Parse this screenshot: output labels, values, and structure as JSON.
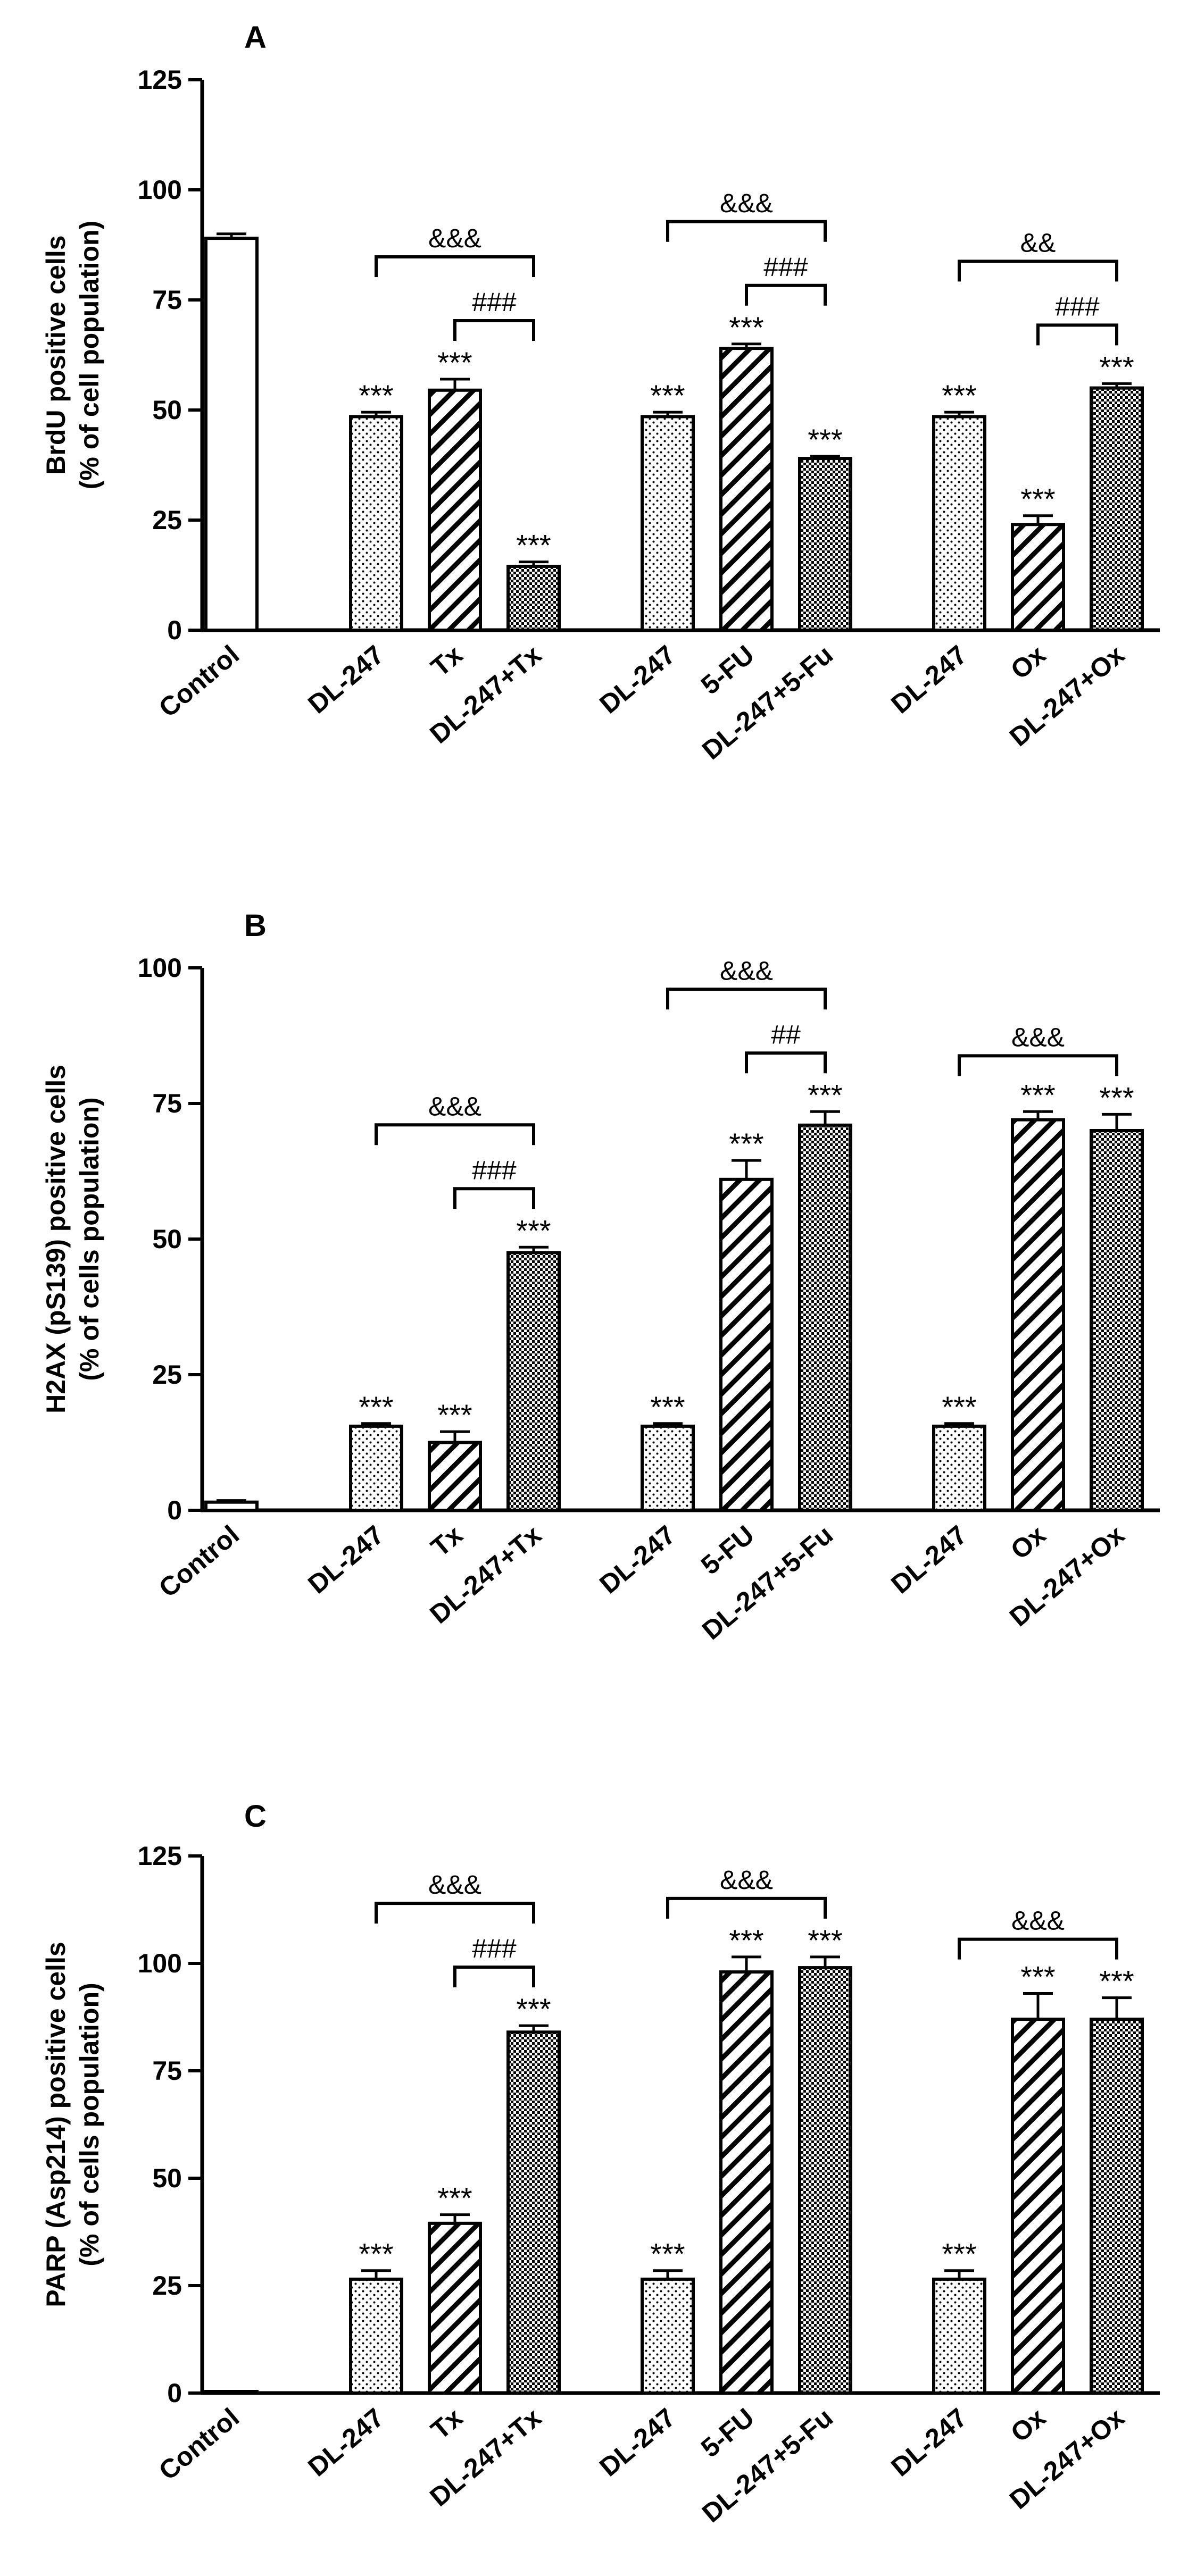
{
  "chart_data": [
    {
      "type": "bar",
      "title": "A",
      "ylabel": [
        "BrdU positive cells",
        "(% of cell population)"
      ],
      "ylim": [
        0,
        125
      ],
      "yticks": [
        0,
        25,
        50,
        75,
        100,
        125
      ],
      "categories": [
        "Control",
        "DL-247",
        "Tx",
        "DL-247+Tx",
        "DL-247",
        "5-FU",
        "DL-247+5-Fu",
        "DL-247",
        "Ox",
        "DL-247+Ox"
      ],
      "values": [
        89,
        48.5,
        54.5,
        14.5,
        48.5,
        64,
        39,
        48.5,
        24,
        55
      ],
      "errors": [
        1,
        1,
        2.5,
        1,
        1,
        1,
        0.5,
        1,
        2,
        1
      ],
      "patterns": [
        "white",
        "dots",
        "hatch",
        "checker",
        "dots",
        "hatch",
        "checker",
        "dots",
        "hatch",
        "checker"
      ],
      "significance": [
        "",
        "***",
        "***",
        "***",
        "***",
        "***",
        "***",
        "***",
        "***",
        "***"
      ],
      "comparisons": [
        {
          "from": 1,
          "to": 3,
          "label": "&&&",
          "level": 1
        },
        {
          "from": 2,
          "to": 3,
          "label": "###",
          "level": 0
        },
        {
          "from": 4,
          "to": 6,
          "label": "&&&",
          "level": 1
        },
        {
          "from": 5,
          "to": 6,
          "label": "###",
          "level": 0
        },
        {
          "from": 7,
          "to": 9,
          "label": "&&",
          "level": 1
        },
        {
          "from": 8,
          "to": 9,
          "label": "###",
          "level": 0
        }
      ]
    },
    {
      "type": "bar",
      "title": "B",
      "ylabel": [
        "H2AX (pS139) positive cells",
        "(% of cells population)"
      ],
      "ylim": [
        0,
        100
      ],
      "yticks": [
        0,
        25,
        50,
        75,
        100
      ],
      "categories": [
        "Control",
        "DL-247",
        "Tx",
        "DL-247+Tx",
        "DL-247",
        "5-FU",
        "DL-247+5-Fu",
        "DL-247",
        "Ox",
        "DL-247+Ox"
      ],
      "values": [
        1.5,
        15.5,
        12.5,
        47.5,
        15.5,
        61,
        71,
        15.5,
        72,
        70
      ],
      "errors": [
        0.3,
        0.5,
        2,
        1,
        0.5,
        3.5,
        2.5,
        0.5,
        1.5,
        3
      ],
      "patterns": [
        "white",
        "dots",
        "hatch",
        "checker",
        "dots",
        "hatch",
        "checker",
        "dots",
        "hatch",
        "checker"
      ],
      "significance": [
        "",
        "***",
        "***",
        "***",
        "***",
        "***",
        "***",
        "***",
        "***",
        "***"
      ],
      "comparisons": [
        {
          "from": 1,
          "to": 3,
          "label": "&&&",
          "level": 1
        },
        {
          "from": 2,
          "to": 3,
          "label": "###",
          "level": 0
        },
        {
          "from": 4,
          "to": 6,
          "label": "&&&",
          "level": 1
        },
        {
          "from": 5,
          "to": 6,
          "label": "##",
          "level": 0
        },
        {
          "from": 7,
          "to": 9,
          "label": "&&&",
          "level": 1
        }
      ]
    },
    {
      "type": "bar",
      "title": "C",
      "ylabel": [
        "PARP (Asp214) positive cells",
        "(% of cells population)"
      ],
      "ylim": [
        0,
        125
      ],
      "yticks": [
        0,
        25,
        50,
        75,
        100,
        125
      ],
      "categories": [
        "Control",
        "DL-247",
        "Tx",
        "DL-247+Tx",
        "DL-247",
        "5-FU",
        "DL-247+5-Fu",
        "DL-247",
        "Ox",
        "DL-247+Ox"
      ],
      "values": [
        0.3,
        26.5,
        39.5,
        84,
        26.5,
        98,
        99,
        26.5,
        87,
        87
      ],
      "errors": [
        0.1,
        2,
        2,
        1.5,
        2,
        3.5,
        2.5,
        2,
        6,
        5
      ],
      "patterns": [
        "white",
        "dots",
        "hatch",
        "checker",
        "dots",
        "hatch",
        "checker",
        "dots",
        "hatch",
        "checker"
      ],
      "significance": [
        "",
        "***",
        "***",
        "***",
        "***",
        "***",
        "***",
        "***",
        "***",
        "***"
      ],
      "comparisons": [
        {
          "from": 1,
          "to": 3,
          "label": "&&&",
          "level": 1
        },
        {
          "from": 2,
          "to": 3,
          "label": "###",
          "level": 0
        },
        {
          "from": 4,
          "to": 6,
          "label": "&&&",
          "level": 1
        },
        {
          "from": 7,
          "to": 9,
          "label": "&&&",
          "level": 1
        }
      ]
    }
  ]
}
